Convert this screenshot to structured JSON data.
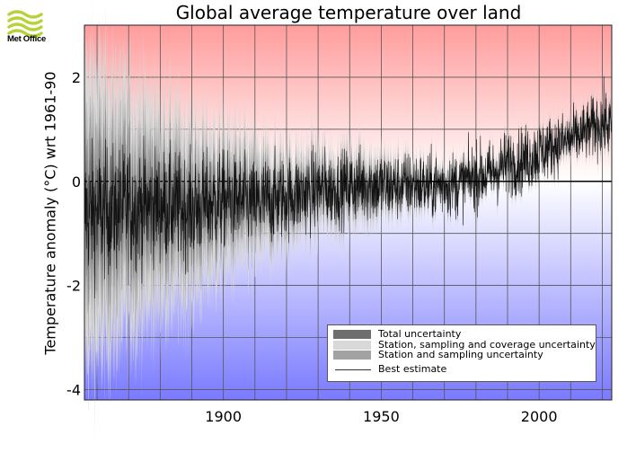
{
  "logo": {
    "name": "Met Office"
  },
  "chart_data": {
    "type": "line",
    "title": "Global average temperature over land",
    "xlabel": "",
    "ylabel": "Temperature anomaly (°C) wrt 1961-90",
    "xlim": [
      1856,
      2023
    ],
    "ylim": [
      -4.2,
      3.0
    ],
    "x_ticks": [
      1900,
      1950,
      2000
    ],
    "y_ticks": [
      2,
      0,
      -2,
      -4
    ],
    "x_tick_labels": [
      "1900",
      "1950",
      "2000"
    ],
    "y_tick_labels": [
      "2",
      "0",
      "-2",
      "-4"
    ],
    "grid": true,
    "background": "vertical gradient: red above 0, white at 0, blue below 0",
    "legend_position": "bottom-right",
    "legend": [
      {
        "label": "Total uncertainty",
        "color": "#6e6e6e"
      },
      {
        "label": "Station, sampling and coverage uncertainty",
        "color": "#d8d8d8"
      },
      {
        "label": "Station and sampling uncertainty",
        "color": "#a2a2a2"
      },
      {
        "label": "Best estimate",
        "color": "#333333",
        "style": "line"
      }
    ],
    "series": [
      {
        "name": "Best estimate",
        "x": [
          1856,
          1860,
          1865,
          1870,
          1875,
          1880,
          1885,
          1890,
          1895,
          1900,
          1905,
          1910,
          1915,
          1920,
          1925,
          1930,
          1935,
          1940,
          1945,
          1950,
          1955,
          1960,
          1965,
          1970,
          1975,
          1980,
          1985,
          1990,
          1995,
          2000,
          2005,
          2010,
          2015,
          2020,
          2023
        ],
        "values": [
          -0.6,
          -0.6,
          -0.55,
          -0.5,
          -0.5,
          -0.45,
          -0.5,
          -0.55,
          -0.45,
          -0.35,
          -0.4,
          -0.45,
          -0.35,
          -0.3,
          -0.25,
          -0.15,
          -0.15,
          -0.1,
          -0.05,
          -0.1,
          -0.1,
          -0.05,
          -0.1,
          -0.05,
          -0.05,
          0.1,
          0.15,
          0.35,
          0.4,
          0.55,
          0.7,
          0.8,
          0.95,
          1.15,
          1.05
        ],
        "monthly_spread": [
          0.9,
          0.9,
          0.85,
          0.85,
          0.8,
          0.75,
          0.75,
          0.7,
          0.7,
          0.65,
          0.6,
          0.6,
          0.6,
          0.55,
          0.55,
          0.55,
          0.5,
          0.5,
          0.5,
          0.5,
          0.45,
          0.45,
          0.45,
          0.45,
          0.45,
          0.45,
          0.45,
          0.45,
          0.45,
          0.45,
          0.4,
          0.4,
          0.4,
          0.45,
          0.45
        ]
      },
      {
        "name": "Total uncertainty",
        "x": [
          1856,
          1860,
          1865,
          1870,
          1875,
          1880,
          1885,
          1890,
          1895,
          1900,
          1905,
          1910,
          1915,
          1920,
          1925,
          1930,
          1935,
          1940,
          1945,
          1950,
          1955,
          1960,
          1965,
          1970,
          1975,
          1980,
          1985,
          1990,
          1995,
          2000,
          2005,
          2010,
          2015,
          2020,
          2023
        ],
        "values": [
          1.2,
          1.15,
          1.05,
          0.95,
          0.9,
          0.8,
          0.75,
          0.7,
          0.6,
          0.55,
          0.5,
          0.45,
          0.4,
          0.35,
          0.3,
          0.3,
          0.25,
          0.25,
          0.25,
          0.2,
          0.18,
          0.15,
          0.13,
          0.12,
          0.1,
          0.1,
          0.1,
          0.1,
          0.1,
          0.1,
          0.1,
          0.1,
          0.1,
          0.12,
          0.12
        ]
      }
    ]
  }
}
